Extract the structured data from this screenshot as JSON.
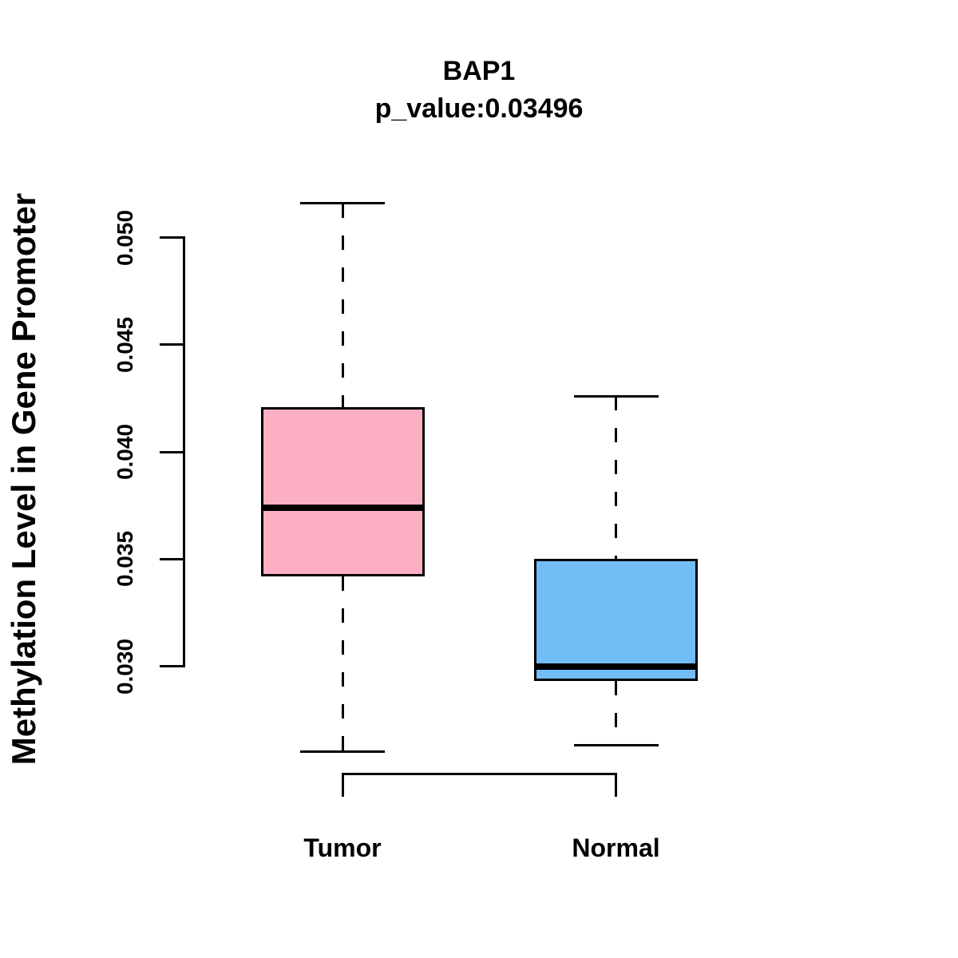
{
  "figure": {
    "title": "BAP1",
    "subtitle": "p_value:0.03496",
    "y_axis_label": "Methylation Level in Gene Promoter"
  },
  "chart_data": {
    "type": "boxplot",
    "title": "BAP1",
    "subtitle": "p_value:0.03496",
    "ylabel": "Methylation Level in Gene Promoter",
    "xlabel": "",
    "categories": [
      "Tumor",
      "Normal"
    ],
    "y_ticks": [
      "0.030",
      "0.035",
      "0.040",
      "0.045",
      "0.050"
    ],
    "y_tick_values": [
      0.03,
      0.035,
      0.04,
      0.045,
      0.05
    ],
    "ylim": [
      0.026,
      0.052
    ],
    "grid": false,
    "legend": "none",
    "background_color": "#FFFFFF",
    "line_color": "#000000",
    "whisker_style": "dashed",
    "series": [
      {
        "name": "Tumor",
        "color": "#FCAFC2",
        "stats": {
          "whisker_low": 0.026,
          "q1": 0.0342,
          "median": 0.0374,
          "q3": 0.0421,
          "whisker_high": 0.0516
        }
      },
      {
        "name": "Normal",
        "color": "#72BDF6",
        "stats": {
          "whisker_low": 0.0263,
          "q1": 0.0293,
          "median": 0.03,
          "q3": 0.035,
          "whisker_high": 0.0426
        }
      }
    ]
  }
}
